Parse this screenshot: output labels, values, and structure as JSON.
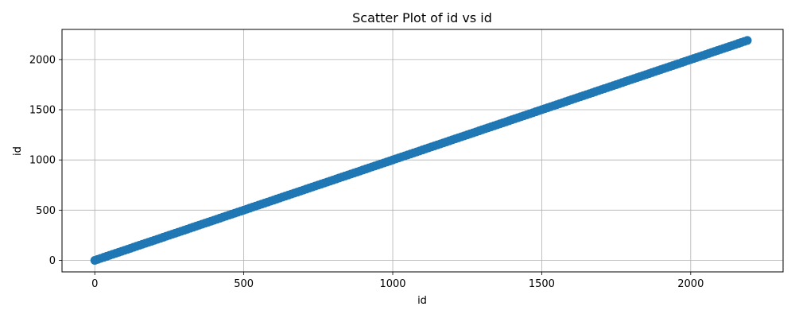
{
  "chart_data": {
    "type": "scatter",
    "title": "Scatter Plot of id vs id",
    "xlabel": "id",
    "ylabel": "id",
    "xlim": [
      -110,
      2310
    ],
    "ylim": [
      -115,
      2300
    ],
    "xticks": [
      0,
      500,
      1000,
      1500,
      2000
    ],
    "yticks": [
      0,
      500,
      1000,
      1500,
      2000
    ],
    "xtick_labels": [
      "0",
      "500",
      "1000",
      "1500",
      "2000"
    ],
    "ytick_labels": [
      "0",
      "500",
      "1000",
      "1500",
      "2000"
    ],
    "grid": true,
    "series": [
      {
        "color": "#1f77b4",
        "x_start": 0,
        "x_end": 2190,
        "step": 10,
        "relation": "y = x"
      }
    ]
  }
}
